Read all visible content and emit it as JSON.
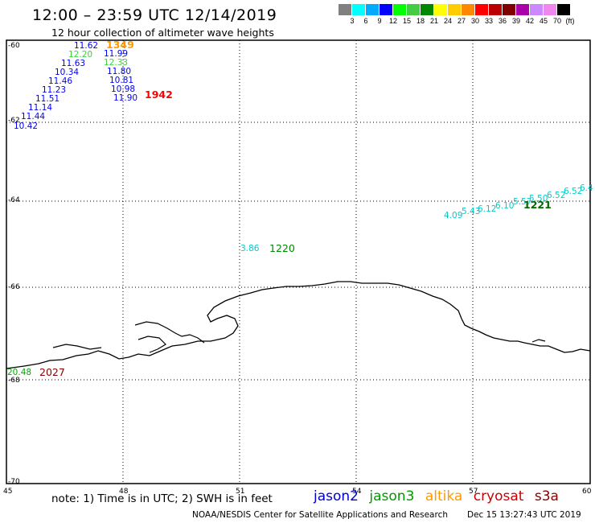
{
  "header": {
    "title": "12:00 – 23:59 UTC 12/14/2019",
    "subtitle": "12 hour collection of altimeter wave heights"
  },
  "color_scale": {
    "unit": "(ft)",
    "colors": [
      "#808080",
      "#00ffff",
      "#00aaff",
      "#0000ff",
      "#00ff00",
      "#44cc44",
      "#008800",
      "#ffff00",
      "#ffcc00",
      "#ff8800",
      "#ff0000",
      "#bb0000",
      "#800000",
      "#aa00aa",
      "#cc88ff",
      "#ee88ee",
      "#000000"
    ],
    "labels": [
      "3",
      "6",
      "9",
      "12",
      "15",
      "18",
      "21",
      "24",
      "27",
      "30",
      "33",
      "36",
      "39",
      "42",
      "45",
      "70"
    ]
  },
  "axes": {
    "lat_labels": [
      "-60",
      "-62",
      "-64",
      "-66",
      "-68",
      "-70"
    ],
    "lon_labels": [
      "45",
      "48",
      "51",
      "54",
      "57",
      "60"
    ]
  },
  "tracks": [
    {
      "satellite": "jason2",
      "color": "#0000ff",
      "values": [
        "11.62",
        "12.20",
        "11.63",
        "10.34",
        "11.46",
        "11.23",
        "11.51",
        "11.14",
        "11.44",
        "10.42"
      ],
      "time_label": "",
      "time_color": "#0000cc"
    },
    {
      "satellite": "jason2",
      "color": "#0000ff",
      "values": [
        "11.99",
        "12.33",
        "11.80",
        "10.81",
        "10.98",
        "11.90"
      ],
      "time_label": "1942",
      "time_color": "#ff0000"
    },
    {
      "satellite": "altika",
      "color": "#ff8800",
      "values": [],
      "time_label": "1349",
      "time_color": "#ff9900"
    },
    {
      "satellite": "jason3",
      "color": "#00cccc",
      "values": [
        "3.86"
      ],
      "time_label": "1220",
      "time_color": "#008800"
    },
    {
      "satellite": "jason3",
      "color": "#00cccc",
      "values": [
        "4.09",
        "5.43",
        "6.12",
        "6.10",
        "5.57",
        "5.50",
        "6.52",
        "6.52",
        "6.4"
      ],
      "time_label": "1221",
      "time_color": "#008800"
    },
    {
      "satellite": "cryosat",
      "color": "#00aa00",
      "values": [
        "20.48"
      ],
      "time_label": "2027",
      "time_color": "#880000"
    }
  ],
  "footer": {
    "note": "note: 1) Time is in UTC; 2) SWH is in feet",
    "legend": [
      {
        "name": "jason2",
        "color": "#0000cc"
      },
      {
        "name": "jason3",
        "color": "#009900"
      },
      {
        "name": "altika",
        "color": "#ff9900"
      },
      {
        "name": "cryosat",
        "color": "#cc0000"
      },
      {
        "name": "s3a",
        "color": "#880000"
      }
    ],
    "credit": "NOAA/NESDIS Center for Satellite Applications and Research",
    "timestamp": "Dec 15 13:27:43 UTC 2019"
  }
}
